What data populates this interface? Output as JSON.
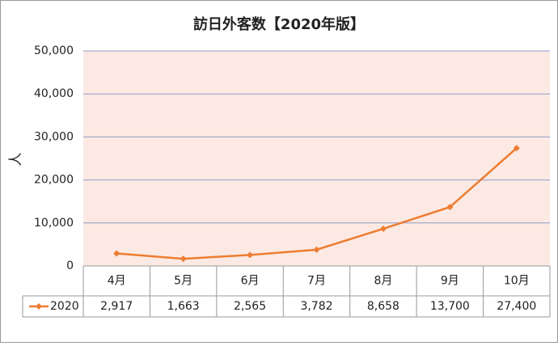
{
  "chart_data": {
    "type": "line",
    "title": "訪日外客数【2020年版】",
    "y_label": "人",
    "categories": [
      "4月",
      "5月",
      "6月",
      "7月",
      "8月",
      "9月",
      "10月"
    ],
    "series": [
      {
        "name": "2020",
        "color": "#ed7d31",
        "values": [
          2917,
          1663,
          2565,
          3782,
          8658,
          13700,
          27400
        ],
        "value_labels": [
          "2,917",
          "1,663",
          "2,565",
          "3,782",
          "8,658",
          "13,700",
          "27,400"
        ]
      }
    ],
    "ylim": [
      0,
      50000
    ],
    "yticks": [
      {
        "value": 0,
        "label": "0"
      },
      {
        "value": 10000,
        "label": "10,000"
      },
      {
        "value": 20000,
        "label": "20,000"
      },
      {
        "value": 30000,
        "label": "30,000"
      },
      {
        "value": 40000,
        "label": "40,000"
      },
      {
        "value": 50000,
        "label": "50,000"
      }
    ],
    "grid": true,
    "plot_background": "#fce9e3",
    "data_table": true
  }
}
